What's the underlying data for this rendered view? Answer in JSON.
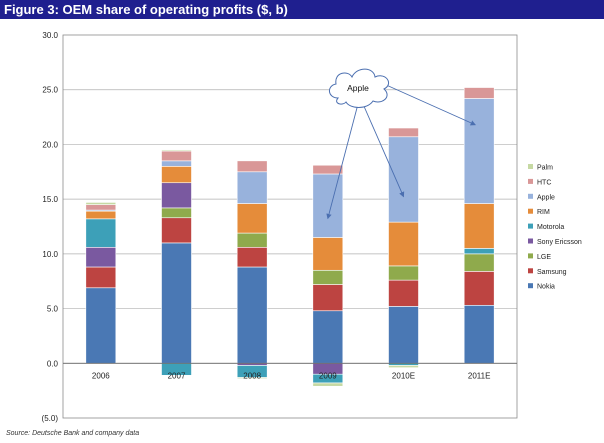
{
  "figure": {
    "title": "Figure 3: OEM share of operating profits ($, b)",
    "source": "Source: Deutsche Bank and company data"
  },
  "colors": {
    "Nokia": "#4a78b4",
    "Samsung": "#bd4441",
    "LGE": "#8faa4c",
    "Sony Ericsson": "#7a59a0",
    "Motorola": "#3da0b8",
    "RIM": "#e58c3a",
    "Apple": "#98b2dc",
    "HTC": "#d99797",
    "Palm": "#c6d9a3"
  },
  "chart_data": {
    "type": "bar",
    "stacked": true,
    "title": "Figure 3: OEM share of operating profits ($, b)",
    "categories": [
      "2006",
      "2007",
      "2008",
      "2009",
      "2010E",
      "2011E"
    ],
    "ylim": [
      -5,
      30
    ],
    "yticks": [
      30,
      25,
      20,
      15,
      10,
      5,
      0,
      -5
    ],
    "ytick_labels": [
      "30.0",
      "25.0",
      "20.0",
      "15.0",
      "10.0",
      "5.0",
      "0.0",
      "(5.0)"
    ],
    "grid": "horizontal",
    "legend_position": "right",
    "legend_order": [
      "Palm",
      "HTC",
      "Apple",
      "RIM",
      "Motorola",
      "Sony Ericsson",
      "LGE",
      "Samsung",
      "Nokia"
    ],
    "legend_labels": [
      "Palm",
      "HTC",
      "Apple",
      "RIM",
      "Motorola",
      "Sony Ericsson",
      "LGE",
      "Samsung",
      "Nokia"
    ],
    "series": [
      {
        "name": "Nokia",
        "values": [
          6.9,
          11.0,
          8.8,
          4.8,
          5.2,
          5.3
        ]
      },
      {
        "name": "Samsung",
        "values": [
          1.9,
          2.3,
          1.8,
          2.4,
          2.4,
          3.1
        ]
      },
      {
        "name": "LGE",
        "values": [
          0.0,
          0.9,
          1.3,
          1.3,
          1.3,
          1.6
        ]
      },
      {
        "name": "Sony Ericsson",
        "values": [
          1.8,
          2.3,
          -0.2,
          -1.0,
          0.0,
          0.0
        ]
      },
      {
        "name": "Motorola",
        "values": [
          2.6,
          -1.1,
          -1.1,
          -0.8,
          -0.2,
          0.5
        ]
      },
      {
        "name": "RIM",
        "values": [
          0.7,
          1.5,
          2.7,
          3.0,
          4.0,
          4.1
        ]
      },
      {
        "name": "Apple",
        "values": [
          0.1,
          0.5,
          2.9,
          5.8,
          7.8,
          9.6
        ]
      },
      {
        "name": "HTC",
        "values": [
          0.5,
          0.9,
          1.0,
          0.8,
          0.8,
          1.0
        ]
      },
      {
        "name": "Palm",
        "values": [
          0.2,
          0.1,
          -0.1,
          -0.3,
          -0.2,
          0.0
        ]
      }
    ],
    "annotation": {
      "label": "Apple",
      "target_categories": [
        "2009",
        "2010E",
        "2011E"
      ]
    }
  }
}
